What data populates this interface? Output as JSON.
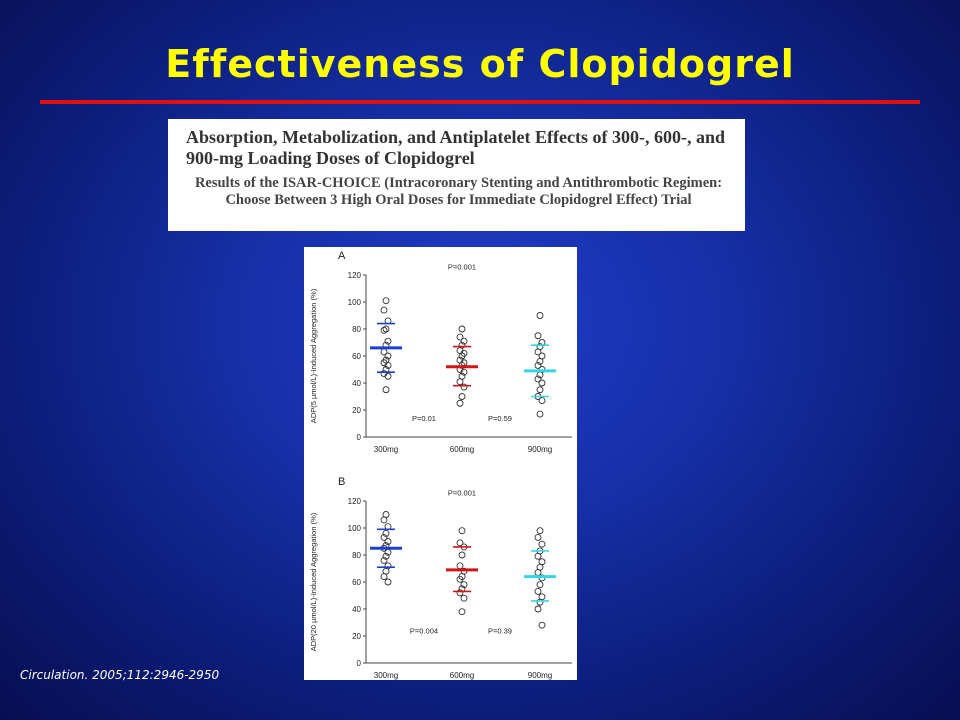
{
  "slide": {
    "title": "Effectiveness of Clopidogrel",
    "header_main": "Absorption, Metabolization, and Antiplatelet Effects of 300-, 600-, and 900-mg Loading Doses of Clopidogrel",
    "header_sub": "Results of the ISAR-CHOICE (Intracoronary Stenting and Antithrombotic Regimen: Choose Between 3 High Oral Doses for Immediate Clopidogrel Effect) Trial",
    "citation": "Circulation. 2005;112:2946-2950"
  },
  "colors": {
    "300mg": "#1a3fd6",
    "600mg": "#d41414",
    "900mg": "#33d6e6"
  },
  "chart_data": [
    {
      "type": "scatter",
      "panel_label": "A",
      "ylabel": "ADP(5 µmol/L)-Induced Aggregation (%)",
      "ylim": [
        0,
        120
      ],
      "yticks": [
        0,
        20,
        40,
        60,
        80,
        100,
        120
      ],
      "categories": [
        "300mg",
        "600mg",
        "900mg"
      ],
      "points": [
        [
          101,
          94,
          86,
          80,
          79,
          71,
          68,
          63,
          60,
          57,
          55,
          53,
          50,
          47,
          45,
          35
        ],
        [
          80,
          74,
          71,
          68,
          64,
          62,
          60,
          57,
          55,
          53,
          50,
          48,
          45,
          41,
          37,
          30,
          25
        ],
        [
          90,
          75,
          70,
          67,
          63,
          60,
          56,
          53,
          50,
          46,
          43,
          40,
          35,
          30,
          27,
          17
        ]
      ],
      "mean": [
        66,
        52,
        49
      ],
      "sd_upper": [
        84,
        67,
        68
      ],
      "sd_lower": [
        48,
        38,
        30
      ],
      "annotations": [
        {
          "text": "P=0.001",
          "x": 1.0,
          "y": 124
        },
        {
          "text": "P=0.01",
          "x": 0.5,
          "y": 12
        },
        {
          "text": "P=0.59",
          "x": 1.5,
          "y": 12
        }
      ]
    },
    {
      "type": "scatter",
      "panel_label": "B",
      "ylabel": "ADP(20 µmol/L)-Induced Aggregation (%)",
      "ylim": [
        0,
        120
      ],
      "yticks": [
        0,
        20,
        40,
        60,
        80,
        100,
        120
      ],
      "categories": [
        "300mg",
        "600mg",
        "900mg"
      ],
      "points": [
        [
          110,
          106,
          101,
          96,
          93,
          90,
          87,
          85,
          82,
          79,
          76,
          72,
          68,
          64,
          60
        ],
        [
          98,
          89,
          86,
          80,
          72,
          68,
          64,
          62,
          58,
          55,
          52,
          48,
          38
        ],
        [
          98,
          93,
          88,
          83,
          79,
          75,
          71,
          67,
          63,
          58,
          53,
          49,
          45,
          40,
          28
        ]
      ],
      "mean": [
        85,
        69,
        64
      ],
      "sd_upper": [
        99,
        86,
        83
      ],
      "sd_lower": [
        71,
        53,
        46
      ],
      "annotations": [
        {
          "text": "P=0.001",
          "x": 1.0,
          "y": 124
        },
        {
          "text": "P=0.004",
          "x": 0.5,
          "y": 22
        },
        {
          "text": "P=0.39",
          "x": 1.5,
          "y": 22
        }
      ]
    }
  ]
}
